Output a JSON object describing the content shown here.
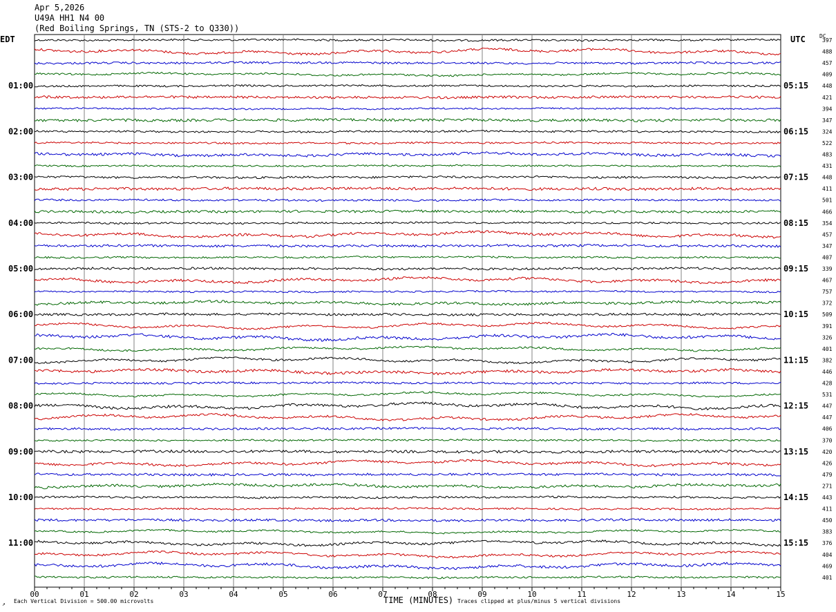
{
  "header": {
    "date": "Apr 5,2026",
    "channel": "U49A HH1 N4 00",
    "station": "(Red Boiling Springs, TN (STS-2 to Q330))"
  },
  "left_timezone": "EDT",
  "right_timezone": "UTC",
  "dc_label": "DC",
  "footer": {
    "marker": "↗",
    "scale_text": "Each Vertical Division =  500.00 microvolts",
    "clip_text": "Traces clipped at plus/minus 5 vertical divisions"
  },
  "colors": {
    "cycle": [
      "#000000",
      "#cc0000",
      "#0000cc",
      "#006600"
    ],
    "grid": "#808080"
  },
  "chart_data": {
    "type": "line",
    "title": "",
    "xlabel": "TIME (MINUTES)",
    "xlim": [
      0,
      15
    ],
    "x_ticks": [
      "00",
      "01",
      "02",
      "03",
      "04",
      "05",
      "06",
      "07",
      "08",
      "09",
      "10",
      "11",
      "12",
      "13",
      "14",
      "15"
    ],
    "trace_count": 48,
    "left_hour_labels": [
      "01:00",
      "02:00",
      "03:00",
      "04:00",
      "05:00",
      "06:00",
      "07:00",
      "08:00",
      "09:00",
      "10:00",
      "11:00"
    ],
    "right_hour_labels": [
      "05:15",
      "06:15",
      "07:15",
      "08:15",
      "09:15",
      "10:15",
      "11:15",
      "12:15",
      "13:15",
      "14:15",
      "15:15"
    ],
    "dc_offsets": [
      "397",
      "488",
      "457",
      "409",
      "448",
      "421",
      "394",
      "347",
      "324",
      "522",
      "483",
      "431",
      "448",
      "411",
      "501",
      "466",
      "354",
      "457",
      "347",
      "407",
      "339",
      "467",
      "757",
      "372",
      "509",
      "391",
      "326",
      "401",
      "382",
      "446",
      "428",
      "531",
      "447",
      "447",
      "406",
      "370",
      "420",
      "426",
      "479",
      "271",
      "443",
      "411",
      "450",
      "383",
      "376",
      "404",
      "469",
      "401"
    ]
  }
}
